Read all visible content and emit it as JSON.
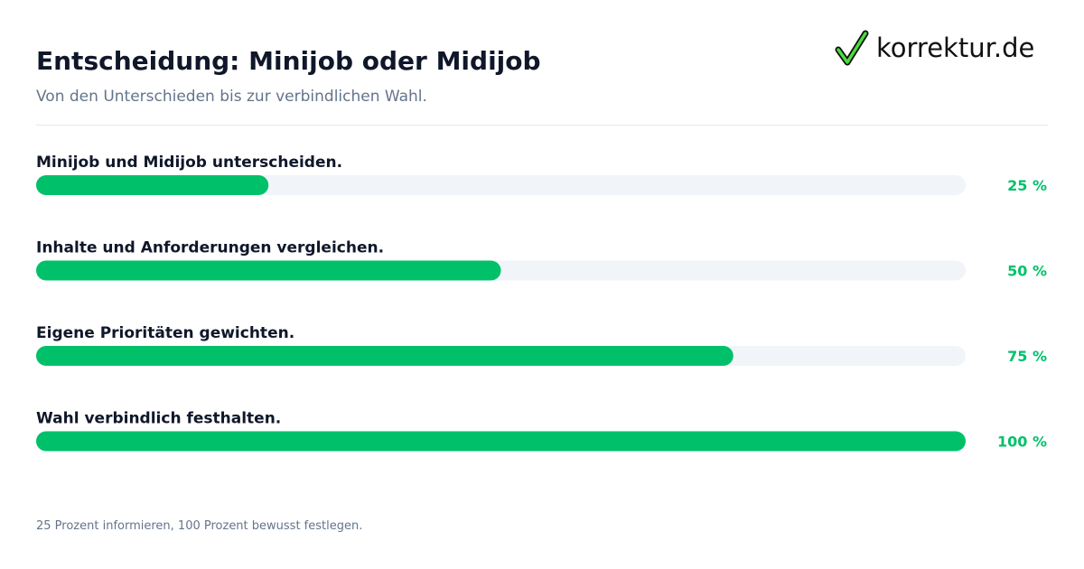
{
  "header": {
    "title": "Entscheidung: Minijob oder Midijob",
    "subtitle": "Von den Unterschieden bis zur verbindlichen Wahl."
  },
  "logo": {
    "text": "korrektur.de",
    "icon": "checkmark-icon"
  },
  "footer": {
    "note": "25 Prozent informieren, 100 Prozent bewusst festlegen."
  },
  "colors": {
    "accent": "#00c16a",
    "track": "#f1f5f9",
    "label": "#0f172a",
    "muted": "#64748b"
  },
  "chart_data": {
    "type": "bar",
    "orientation": "horizontal",
    "categories": [
      "Minijob und Midijob unterscheiden.",
      "Inhalte und Anforderungen vergleichen.",
      "Eigene Prioritäten gewichten.",
      "Wahl verbindlich festhalten."
    ],
    "values": [
      25,
      50,
      75,
      100
    ],
    "value_labels": [
      "25 %",
      "50 %",
      "75 %",
      "100 %"
    ],
    "xlim": [
      0,
      100
    ],
    "title": "Entscheidung: Minijob oder Midijob",
    "subtitle": "Von den Unterschieden bis zur verbindlichen Wahl.",
    "grid": false,
    "legend": "none"
  }
}
